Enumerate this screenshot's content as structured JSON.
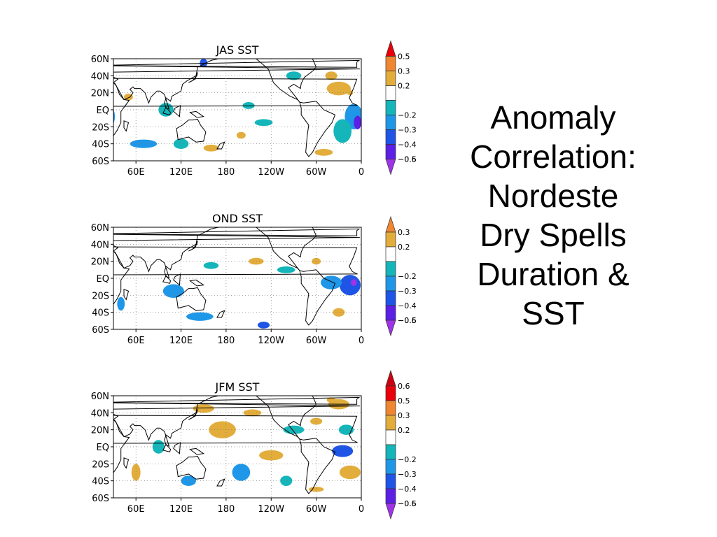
{
  "slide": {
    "title_lines": [
      "Anomaly",
      "Correlation:",
      "Nordeste",
      "Dry Spells",
      "Duration &",
      "SST"
    ]
  },
  "chart_data": [
    {
      "type": "heatmap",
      "title": "JAS SST",
      "x_ticks": [
        "60E",
        "120E",
        "180",
        "120W",
        "60W",
        "0"
      ],
      "y_ticks": [
        "60N",
        "40N",
        "20N",
        "EQ",
        "20S",
        "40S",
        "60S"
      ],
      "xlim": [
        30,
        360
      ],
      "ylim": [
        -60,
        60
      ],
      "grid": true,
      "legend_position": "right",
      "colorbar": [
        {
          "label": "0.5",
          "color": "#e8000b"
        },
        {
          "label": "0.3",
          "color": "#f08632"
        },
        {
          "label": "0.2",
          "color": "#e3ad3c"
        },
        {
          "label": "",
          "color": "#ffffff"
        },
        {
          "label": "−0.2",
          "color": "#14b6ba"
        },
        {
          "label": "−0.3",
          "color": "#1f97e8"
        },
        {
          "label": "−0.4",
          "color": "#1e55e6"
        },
        {
          "label": "−0.5",
          "color": "#5b1fe6"
        },
        {
          "label": "−0.6",
          "color": "#9e33e8"
        }
      ],
      "regions": [
        {
          "lon": 150,
          "lat": 55,
          "v": -0.4,
          "rx": 5,
          "ry": 5
        },
        {
          "lon": 330,
          "lat": 25,
          "v": 0.3,
          "rx": 16,
          "ry": 8
        },
        {
          "lon": 320,
          "lat": 40,
          "v": 0.3,
          "rx": 8,
          "ry": 5
        },
        {
          "lon": 345,
          "lat": 20,
          "v": 0.5,
          "rx": 4,
          "ry": 3
        },
        {
          "lon": 350,
          "lat": -8,
          "v": -0.3,
          "rx": 12,
          "ry": 15
        },
        {
          "lon": 355,
          "lat": -15,
          "v": -0.5,
          "rx": 5,
          "ry": 8
        },
        {
          "lon": 335,
          "lat": -25,
          "v": -0.2,
          "rx": 12,
          "ry": 14
        },
        {
          "lon": 70,
          "lat": -40,
          "v": -0.3,
          "rx": 18,
          "ry": 5
        },
        {
          "lon": 120,
          "lat": -40,
          "v": -0.2,
          "rx": 10,
          "ry": 6
        },
        {
          "lon": 100,
          "lat": 0,
          "v": -0.2,
          "rx": 10,
          "ry": 8
        },
        {
          "lon": 210,
          "lat": 5,
          "v": -0.2,
          "rx": 8,
          "ry": 4
        },
        {
          "lon": 230,
          "lat": -15,
          "v": -0.2,
          "rx": 12,
          "ry": 4
        },
        {
          "lon": 160,
          "lat": -45,
          "v": 0.3,
          "rx": 10,
          "ry": 4
        },
        {
          "lon": 310,
          "lat": -50,
          "v": 0.5,
          "rx": 12,
          "ry": 4
        },
        {
          "lon": 50,
          "lat": 15,
          "v": 0.3,
          "rx": 6,
          "ry": 4
        },
        {
          "lon": 270,
          "lat": 40,
          "v": -0.2,
          "rx": 10,
          "ry": 5
        },
        {
          "lon": 200,
          "lat": -30,
          "v": 0.2,
          "rx": 6,
          "ry": 4
        }
      ]
    },
    {
      "type": "heatmap",
      "title": "OND SST",
      "x_ticks": [
        "60E",
        "120E",
        "180",
        "120W",
        "60W",
        "0"
      ],
      "y_ticks": [
        "60N",
        "40N",
        "20N",
        "EQ",
        "20S",
        "40S",
        "60S"
      ],
      "xlim": [
        30,
        360
      ],
      "ylim": [
        -60,
        60
      ],
      "grid": true,
      "legend_position": "right",
      "colorbar": [
        {
          "label": "0.3",
          "color": "#f08632"
        },
        {
          "label": "0.2",
          "color": "#e3ad3c"
        },
        {
          "label": "",
          "color": "#ffffff"
        },
        {
          "label": "−0.2",
          "color": "#14b6ba"
        },
        {
          "label": "−0.3",
          "color": "#1f97e8"
        },
        {
          "label": "−0.4",
          "color": "#1e55e6"
        },
        {
          "label": "−0.5",
          "color": "#5b1fe6"
        },
        {
          "label": "−0.6",
          "color": "#9e33e8"
        }
      ],
      "regions": [
        {
          "lon": 345,
          "lat": -8,
          "v": -0.4,
          "rx": 14,
          "ry": 12
        },
        {
          "lon": 350,
          "lat": -5,
          "v": -0.6,
          "rx": 4,
          "ry": 4
        },
        {
          "lon": 320,
          "lat": -5,
          "v": -0.3,
          "rx": 14,
          "ry": 8
        },
        {
          "lon": 110,
          "lat": -15,
          "v": -0.3,
          "rx": 14,
          "ry": 8
        },
        {
          "lon": 145,
          "lat": -45,
          "v": -0.3,
          "rx": 18,
          "ry": 5
        },
        {
          "lon": 230,
          "lat": -55,
          "v": -0.4,
          "rx": 8,
          "ry": 4
        },
        {
          "lon": 220,
          "lat": 20,
          "v": 0.3,
          "rx": 10,
          "ry": 4
        },
        {
          "lon": 260,
          "lat": 10,
          "v": -0.2,
          "rx": 12,
          "ry": 4
        },
        {
          "lon": 330,
          "lat": -40,
          "v": 0.3,
          "rx": 8,
          "ry": 5
        },
        {
          "lon": 300,
          "lat": 20,
          "v": 0.3,
          "rx": 6,
          "ry": 4
        },
        {
          "lon": 160,
          "lat": 15,
          "v": -0.2,
          "rx": 10,
          "ry": 4
        },
        {
          "lon": 40,
          "lat": -30,
          "v": -0.3,
          "rx": 5,
          "ry": 8
        }
      ]
    },
    {
      "type": "heatmap",
      "title": "JFM SST",
      "x_ticks": [
        "60E",
        "120E",
        "180",
        "120W",
        "60W",
        "0"
      ],
      "y_ticks": [
        "60N",
        "40N",
        "20N",
        "EQ",
        "20S",
        "40S",
        "60S"
      ],
      "xlim": [
        30,
        360
      ],
      "ylim": [
        -60,
        60
      ],
      "grid": true,
      "legend_position": "right",
      "colorbar": [
        {
          "label": "0.6",
          "color": "#cc0010"
        },
        {
          "label": "0.5",
          "color": "#e8000b"
        },
        {
          "label": "0.3",
          "color": "#f08632"
        },
        {
          "label": "0.2",
          "color": "#e3ad3c"
        },
        {
          "label": "",
          "color": "#ffffff"
        },
        {
          "label": "−0.2",
          "color": "#14b6ba"
        },
        {
          "label": "−0.3",
          "color": "#1f97e8"
        },
        {
          "label": "−0.4",
          "color": "#1e55e6"
        },
        {
          "label": "−0.5",
          "color": "#5b1fe6"
        },
        {
          "label": "−0.6",
          "color": "#9e33e8"
        }
      ],
      "regions": [
        {
          "lon": 175,
          "lat": 20,
          "v": 0.3,
          "rx": 18,
          "ry": 10
        },
        {
          "lon": 175,
          "lat": 18,
          "v": 0.6,
          "rx": 4,
          "ry": 3
        },
        {
          "lon": 150,
          "lat": 45,
          "v": 0.3,
          "rx": 14,
          "ry": 5
        },
        {
          "lon": 330,
          "lat": 50,
          "v": 0.3,
          "rx": 14,
          "ry": 6
        },
        {
          "lon": 320,
          "lat": 55,
          "v": 0.5,
          "rx": 6,
          "ry": 3
        },
        {
          "lon": 340,
          "lat": 20,
          "v": -0.2,
          "rx": 10,
          "ry": 6
        },
        {
          "lon": 335,
          "lat": -5,
          "v": -0.4,
          "rx": 14,
          "ry": 7
        },
        {
          "lon": 345,
          "lat": -30,
          "v": 0.3,
          "rx": 14,
          "ry": 8
        },
        {
          "lon": 345,
          "lat": -32,
          "v": 0.6,
          "rx": 3,
          "ry": 3
        },
        {
          "lon": 200,
          "lat": -30,
          "v": -0.3,
          "rx": 12,
          "ry": 10
        },
        {
          "lon": 240,
          "lat": -10,
          "v": 0.3,
          "rx": 16,
          "ry": 6
        },
        {
          "lon": 130,
          "lat": -40,
          "v": -0.3,
          "rx": 10,
          "ry": 6
        },
        {
          "lon": 60,
          "lat": -30,
          "v": 0.3,
          "rx": 6,
          "ry": 10
        },
        {
          "lon": 90,
          "lat": 0,
          "v": -0.2,
          "rx": 8,
          "ry": 8
        },
        {
          "lon": 270,
          "lat": 20,
          "v": -0.2,
          "rx": 14,
          "ry": 5
        },
        {
          "lon": 300,
          "lat": 30,
          "v": 0.3,
          "rx": 8,
          "ry": 4
        },
        {
          "lon": 215,
          "lat": 40,
          "v": 0.3,
          "rx": 12,
          "ry": 4
        },
        {
          "lon": 260,
          "lat": -40,
          "v": -0.2,
          "rx": 8,
          "ry": 6
        },
        {
          "lon": 300,
          "lat": -50,
          "v": 0.3,
          "rx": 10,
          "ry": 3
        }
      ]
    }
  ]
}
